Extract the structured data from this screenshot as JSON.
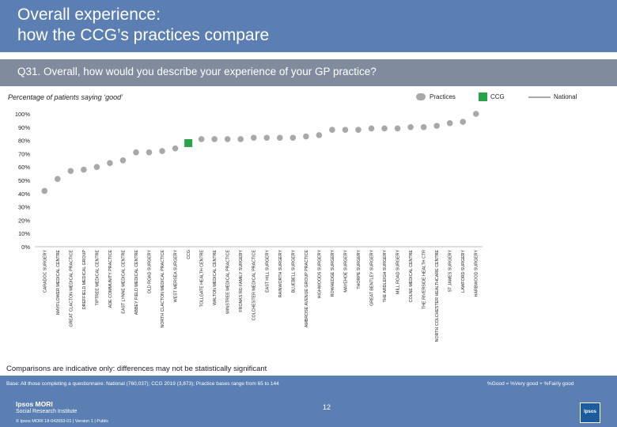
{
  "header": {
    "title_line1": "Overall experience:",
    "title_line2": "how the CCG’s practices compare"
  },
  "question": "Q31. Overall, how would you describe your experience of your GP practice?",
  "subtitle": "Percentage of patients saying ‘good’",
  "legend": {
    "practices": "Practices",
    "ccg": "CCG",
    "national": "National"
  },
  "colors": {
    "header": "#5b7fb2",
    "question_bar": "#808b9d",
    "practice_dot": "#a8a8a8",
    "ccg_marker": "#27a44a"
  },
  "chart_data": {
    "type": "scatter",
    "title": "Percentage of patients saying ‘good’",
    "ylim": [
      0,
      100
    ],
    "yticks": [
      "0%",
      "10%",
      "20%",
      "30%",
      "40%",
      "50%",
      "60%",
      "70%",
      "80%",
      "90%",
      "100%"
    ],
    "categories": [
      "CARADOC SURGERY",
      "MAYFLOWER MEDICAL CENTRE",
      "GREAT CLACTON MEDICAL PRACTICE",
      "DREFFIELD MEDICAL GROUP",
      "TIPTREE MEDICAL CENTRE",
      "ADE COMMUNITY PRACTICE",
      "EAST LYNNE MEDICAL CENTRE",
      "ABBEY FIELD MEDICAL CENTRE",
      "OLD ROAD SURGERY",
      "NORTH CLACTON MEDICAL PRACTICE",
      "WEST MERSEA SURGERY",
      "CCG",
      "TOLLGATE HEALTH CENTRE",
      "WALTON MEDICAL CENTRE",
      "WINSTREE MEDICAL PRACTICE",
      "FRONKS RD FAMILY SURGERY",
      "COLCHESTER MEDICAL PRACTICE",
      "EAST HILL SURGERY",
      "RAINWORTH SURGERY",
      "BLUEBELL SURGERY",
      "AMBROSE AVENUE GROUP PRACTICE",
      "HIGHWOODS SURGERY",
      "ROWHEDGE SURGERY",
      "MAYEHOE SURGERY",
      "THORPE SURGERY",
      "GREAT BENTLEY SURGERY",
      "THE ARDLEIGH SURGERY",
      "MILL ROAD SURGERY",
      "COLNE MEDICAL CENTRE",
      "THE RIVERSIDE HEALTH CTR",
      "NORTH COLCHESTER HEALTHCARE CENTRE",
      "ST JAMES SURGERY",
      "LAWFORD SURGERY",
      "HARBWOOD SURGERY"
    ],
    "series": [
      {
        "name": "Practices",
        "values": [
          42,
          51,
          57,
          58,
          60,
          63,
          65,
          71,
          71,
          72,
          74,
          null,
          81,
          81,
          81,
          81,
          82,
          82,
          82,
          82,
          83,
          84,
          88,
          88,
          88,
          89,
          89,
          89,
          90,
          90,
          91,
          93,
          94,
          100
        ]
      },
      {
        "name": "CCG",
        "values": [
          null,
          null,
          null,
          null,
          null,
          null,
          null,
          null,
          null,
          null,
          null,
          78,
          null,
          null,
          null,
          null,
          null,
          null,
          null,
          null,
          null,
          null,
          null,
          null,
          null,
          null,
          null,
          null,
          null,
          null,
          null,
          null,
          null,
          null
        ]
      }
    ],
    "national": null
  },
  "footer": {
    "note": "Comparisons are indicative only: differences may not be statistically significant",
    "base": "Base: All those completing a questionnaire: National (760,037); CCG 2019 (3,873); Practice bases range from 65 to 144",
    "definition": "%Good = %Very good + %Fairly good",
    "page_number": "12",
    "logo_line1": "Ipsos MORI",
    "logo_line2": "Social Research Institute",
    "copyright": "© Ipsos MORI     18-042653-01 | Version 1 | Public",
    "logo_box": "Ipsos"
  }
}
